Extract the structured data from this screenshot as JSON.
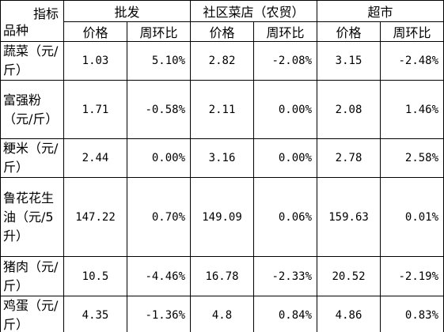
{
  "table": {
    "corner": {
      "top": "指标",
      "bottom": "品种"
    },
    "groups": [
      "批发",
      "社区菜店（农贸）",
      "超市"
    ],
    "subheaders": [
      "价格",
      "周环比",
      "价格",
      "周环比",
      "价格",
      "周环比"
    ],
    "rows": [
      [
        "蔬菜（元/斤）",
        "1.03",
        "5.10%",
        "2.82",
        "-2.08%",
        "3.15",
        "-2.48%"
      ],
      [
        "富强粉（元/斤）",
        "1.71",
        "-0.58%",
        "2.11",
        "0.00%",
        "2.08",
        "1.46%"
      ],
      [
        "粳米（元/斤）",
        "2.44",
        "0.00%",
        "3.16",
        "0.00%",
        "2.78",
        "2.58%"
      ],
      [
        "鲁花花生油（元/5升）",
        "147.22",
        "0.70%",
        "149.09",
        "0.06%",
        "159.63",
        "0.01%"
      ],
      [
        "猪肉（元/斤）",
        "10.5",
        "-4.46%",
        "16.78",
        "-2.33%",
        "20.52",
        "-2.19%"
      ],
      [
        "鸡蛋（元/斤）",
        "4.35",
        "-1.36%",
        "4.8",
        "0.84%",
        "4.86",
        "0.83%"
      ]
    ]
  }
}
